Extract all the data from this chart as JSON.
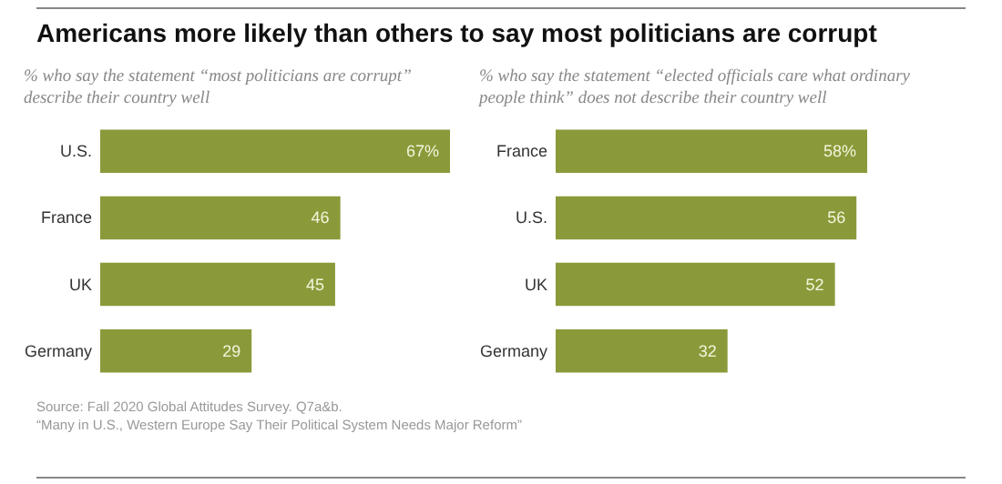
{
  "chart_data": [
    {
      "type": "bar",
      "orientation": "horizontal",
      "title": "Americans more likely than others to say most politicians are corrupt",
      "subtitle": "% who say the statement “most politicians are corrupt” describe their country well",
      "categories": [
        "U.S.",
        "France",
        "UK",
        "Germany"
      ],
      "values": [
        67,
        46,
        45,
        29
      ],
      "value_labels": [
        "67%",
        "46",
        "45",
        "29"
      ],
      "color": "#8a9a3a",
      "annotations": [
        "Source: Fall 2020 Global Attitudes Survey. Q7a&b.",
        "“Many in U.S., Western Europe Say Their Political System Needs Major Reform”"
      ]
    },
    {
      "type": "bar",
      "orientation": "horizontal",
      "subtitle": "% who say the statement “elected officials care what ordinary people think” does not describe their country well",
      "categories": [
        "France",
        "U.S.",
        "UK",
        "Germany"
      ],
      "values": [
        58,
        56,
        52,
        32
      ],
      "value_labels": [
        "58%",
        "56",
        "52",
        "32"
      ],
      "color": "#8a9a3a"
    }
  ]
}
